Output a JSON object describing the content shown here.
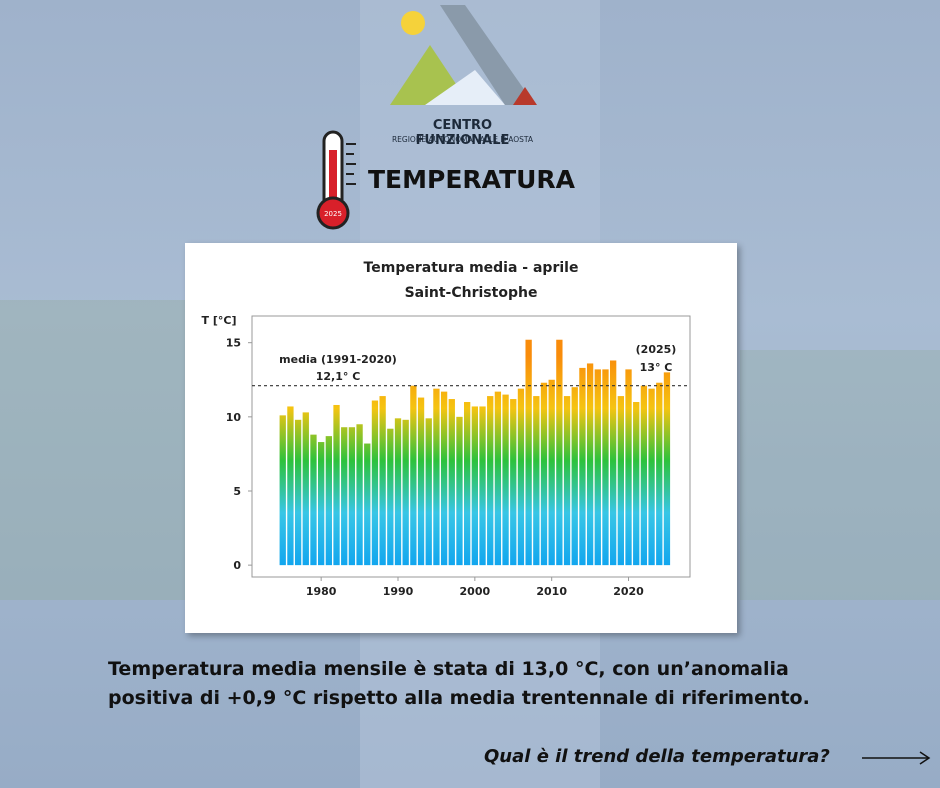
{
  "logo": {
    "title": "CENTRO FUNZIONALE",
    "subtitle": "REGIONE AUTONOMA VALLE D'AOSTA"
  },
  "header": {
    "icon_label": "2025",
    "title": "TEMPERATURA"
  },
  "chart_data": {
    "type": "bar",
    "title": "Temperatura media - aprile",
    "subtitle": "Saint-Christophe",
    "y_label": "T [°C]",
    "x": [
      1975,
      1976,
      1977,
      1978,
      1979,
      1980,
      1981,
      1982,
      1983,
      1984,
      1985,
      1986,
      1987,
      1988,
      1989,
      1990,
      1991,
      1992,
      1993,
      1994,
      1995,
      1996,
      1997,
      1998,
      1999,
      2000,
      2001,
      2002,
      2003,
      2004,
      2005,
      2006,
      2007,
      2008,
      2009,
      2010,
      2011,
      2012,
      2013,
      2014,
      2015,
      2016,
      2017,
      2018,
      2019,
      2020,
      2021,
      2022,
      2023,
      2024,
      2025
    ],
    "values": [
      10.1,
      10.7,
      9.8,
      10.3,
      8.8,
      8.3,
      8.7,
      10.8,
      9.3,
      9.3,
      9.5,
      8.2,
      11.1,
      11.4,
      9.2,
      9.9,
      9.8,
      12.1,
      11.3,
      9.9,
      11.9,
      11.7,
      11.2,
      10.0,
      11.0,
      10.7,
      10.7,
      11.4,
      11.7,
      11.5,
      11.2,
      11.9,
      15.2,
      11.4,
      12.3,
      12.5,
      15.2,
      11.4,
      12.0,
      13.3,
      13.6,
      13.2,
      13.2,
      13.8,
      11.4,
      13.2,
      11.0,
      12.1,
      11.9,
      12.3,
      13.0
    ],
    "colors": [
      "#12a6ee",
      "#38c6e6",
      "#2dc23c",
      "#f5c411",
      "#f98c0b"
    ],
    "xlim": [
      1971,
      2028
    ],
    "ylim": [
      -0.8,
      16.8
    ],
    "xticks": [
      1980,
      1990,
      2000,
      2010,
      2020
    ],
    "yticks": [
      0,
      5,
      10,
      15
    ],
    "reference_line": 12.1,
    "annotations": [
      "media (1991-2020)",
      "12,1° C",
      "(2025)",
      "13° C"
    ]
  },
  "body": [
    "Temperatura media mensile è stata di 13,0 °C, con un’anomalia",
    "positiva di +0,9 °C rispetto alla media trentennale di riferimento."
  ],
  "footer": {
    "link": "Qual è il trend della temperatura?"
  }
}
